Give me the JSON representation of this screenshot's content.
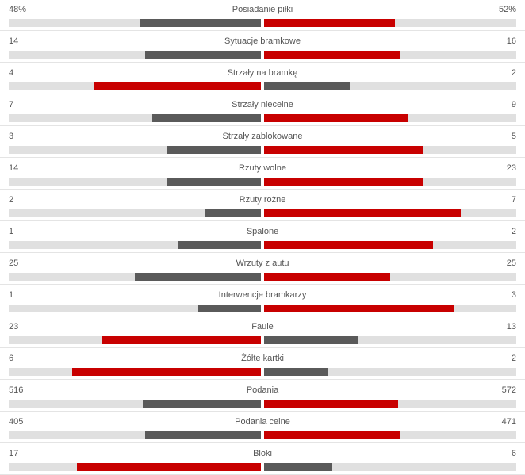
{
  "colors": {
    "leader": "#c80000",
    "trailer": "#5a5a5a",
    "track": "#e0e0e0"
  },
  "stats": [
    {
      "label": "Posiadanie piłki",
      "home": "48%",
      "away": "52%",
      "home_fill": 0.48,
      "away_fill": 0.52
    },
    {
      "label": "Sytuacje bramkowe",
      "home": "14",
      "away": "16",
      "home_fill": 0.46,
      "away_fill": 0.54
    },
    {
      "label": "Strzały na bramkę",
      "home": "4",
      "away": "2",
      "home_fill": 0.66,
      "away_fill": 0.34
    },
    {
      "label": "Strzały niecelne",
      "home": "7",
      "away": "9",
      "home_fill": 0.43,
      "away_fill": 0.57
    },
    {
      "label": "Strzały zablokowane",
      "home": "3",
      "away": "5",
      "home_fill": 0.37,
      "away_fill": 0.63
    },
    {
      "label": "Rzuty wolne",
      "home": "14",
      "away": "23",
      "home_fill": 0.37,
      "away_fill": 0.63
    },
    {
      "label": "Rzuty rożne",
      "home": "2",
      "away": "7",
      "home_fill": 0.22,
      "away_fill": 0.78
    },
    {
      "label": "Spalone",
      "home": "1",
      "away": "2",
      "home_fill": 0.33,
      "away_fill": 0.67
    },
    {
      "label": "Wrzuty z autu",
      "home": "25",
      "away": "25",
      "home_fill": 0.5,
      "away_fill": 0.5
    },
    {
      "label": "Interwencje bramkarzy",
      "home": "1",
      "away": "3",
      "home_fill": 0.25,
      "away_fill": 0.75
    },
    {
      "label": "Faule",
      "home": "23",
      "away": "13",
      "home_fill": 0.63,
      "away_fill": 0.37
    },
    {
      "label": "Żółte kartki",
      "home": "6",
      "away": "2",
      "home_fill": 0.75,
      "away_fill": 0.25
    },
    {
      "label": "Podania",
      "home": "516",
      "away": "572",
      "home_fill": 0.47,
      "away_fill": 0.53
    },
    {
      "label": "Podania celne",
      "home": "405",
      "away": "471",
      "home_fill": 0.46,
      "away_fill": 0.54
    },
    {
      "label": "Bloki",
      "home": "17",
      "away": "6",
      "home_fill": 0.73,
      "away_fill": 0.27
    }
  ]
}
